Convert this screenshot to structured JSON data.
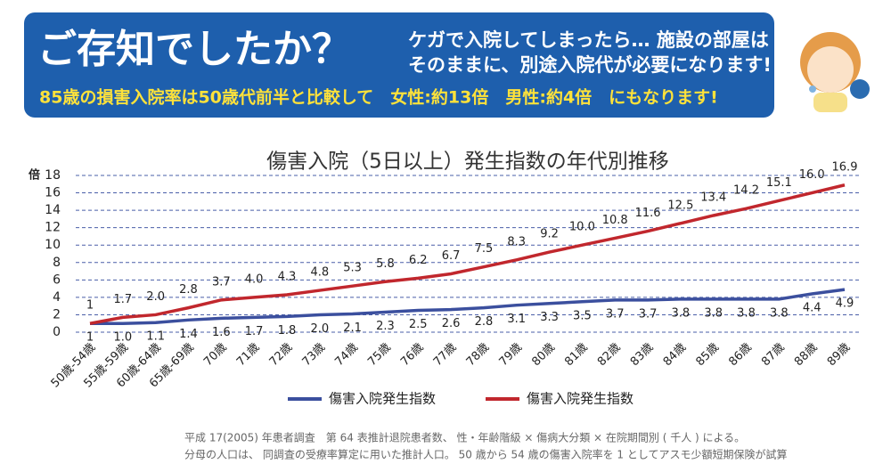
{
  "header": {
    "title": "ご存知でしたか？",
    "message": [
      "ケガで入院してしまったら… 施設の部屋は",
      "そのままに、別途入院代が必要になります!"
    ],
    "highlight": "85歳の損害入院率は50歳代前半と比較して　女性:約13倍　男性:約4倍　にもなります!"
  },
  "chart_data": {
    "type": "line",
    "title": "傷害入院（5日以上）発生指数の年代別推移",
    "y_label": "倍",
    "categories": [
      "50歳-54歳",
      "55歳-59歳",
      "60歳-64歳",
      "65歳-69歳",
      "70歳",
      "71歳",
      "72歳",
      "73歳",
      "74歳",
      "75歳",
      "76歳",
      "77歳",
      "78歳",
      "79歳",
      "80歳",
      "81歳",
      "82歳",
      "83歳",
      "84歳",
      "85歳",
      "86歳",
      "87歳",
      "88歳",
      "89歳"
    ],
    "series": [
      {
        "name": "傷害入院発生指数",
        "color": "#3b4f9e",
        "label_pos": "below",
        "values": [
          1,
          1.0,
          1.1,
          1.4,
          1.6,
          1.7,
          1.8,
          2.0,
          2.1,
          2.3,
          2.5,
          2.6,
          2.8,
          3.1,
          3.3,
          3.5,
          3.7,
          3.7,
          3.8,
          3.8,
          3.8,
          3.8,
          4.4,
          4.9
        ],
        "value_labels": [
          "1",
          "1.0",
          "1.1",
          "1.4",
          "1.6",
          "1.7",
          "1.8",
          "2.0",
          "2.1",
          "2.3",
          "2.5",
          "2.6",
          "2.8",
          "3.1",
          "3.3",
          "3.5",
          "3.7",
          "3.7",
          "3.8",
          "3.8",
          "3.8",
          "3.8",
          "4.4",
          "4.9"
        ]
      },
      {
        "name": "傷害入院発生指数",
        "color": "#c1272d",
        "label_pos": "above",
        "values": [
          1,
          1.7,
          2.0,
          2.8,
          3.7,
          4.0,
          4.3,
          4.8,
          5.3,
          5.8,
          6.2,
          6.7,
          7.5,
          8.3,
          9.2,
          10.0,
          10.8,
          11.6,
          12.5,
          13.4,
          14.2,
          15.1,
          16.0,
          16.9
        ],
        "value_labels": [
          "1",
          "1.7",
          "2.0",
          "2.8",
          "3.7",
          "4.0",
          "4.3",
          "4.8",
          "5.3",
          "5.8",
          "6.2",
          "6.7",
          "7.5",
          "8.3",
          "9.2",
          "10.0",
          "10.8",
          "11.6",
          "12.5",
          "13.4",
          "14.2",
          "15.1",
          "16.0",
          "16.9"
        ]
      }
    ],
    "ylim": [
      0,
      18
    ],
    "yticks": [
      0,
      2,
      4,
      6,
      8,
      10,
      12,
      14,
      16,
      18
    ],
    "grid": true
  },
  "footnote": [
    "平成 17(2005) 年患者調査　第 64 表推計退院患者数、 性・年齢階級 × 傷病大分類 × 在院期間別 ( 千人 ) による。",
    "分母の人口は、 同調査の受療率算定に用いた推計人口。 50 歳から 54 歳の傷害入院率を 1 としてアスモ少額短期保険が試算"
  ]
}
